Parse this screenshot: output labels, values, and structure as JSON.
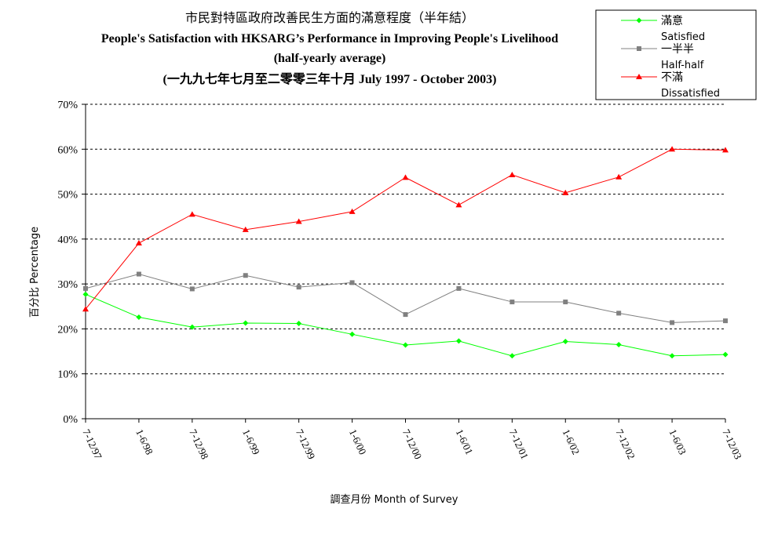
{
  "chart_data": {
    "type": "line",
    "title_lines": [
      "市民對特區政府改善民生方面的滿意程度（半年結）",
      "People's Satisfaction with HKSARG’s Performance in Improving People's Livelihood",
      "(half-yearly average)",
      "(一九九七年七月至二零零三年十月 July 1997 - October 2003)"
    ],
    "xlabel": "調查月份 Month of Survey",
    "ylabel": "百分比 Percentage",
    "categories": [
      "7-12/97",
      "1-6/98",
      "7-12/98",
      "1-6/99",
      "7-12/99",
      "1-6/00",
      "7-12/00",
      "1-6/01",
      "7-12/01",
      "1-6/02",
      "7-12/02",
      "1-6/03",
      "7-12/03"
    ],
    "ylim": [
      0,
      70
    ],
    "yticks": [
      0,
      10,
      20,
      30,
      40,
      50,
      60,
      70
    ],
    "ytick_labels": [
      "0%",
      "10%",
      "20%",
      "30%",
      "40%",
      "50%",
      "60%",
      "70%"
    ],
    "grid": true,
    "legend_position": "top-right",
    "series": [
      {
        "name": "滿意",
        "name_en": "Satisfied",
        "color": "#00ff00",
        "marker": "diamond",
        "values": [
          27.7,
          22.6,
          20.4,
          21.3,
          21.2,
          18.8,
          16.4,
          17.3,
          14.0,
          17.2,
          16.5,
          14.0,
          14.3
        ]
      },
      {
        "name": "一半半",
        "name_en": "Half-half",
        "color": "#808080",
        "marker": "square",
        "values": [
          29.0,
          32.2,
          28.9,
          31.9,
          29.3,
          30.3,
          23.2,
          29.0,
          26.0,
          26.0,
          23.5,
          21.4,
          21.8
        ]
      },
      {
        "name": "不滿",
        "name_en": "Dissatisfied",
        "color": "#ff0000",
        "marker": "triangle",
        "values": [
          24.4,
          39.1,
          45.5,
          42.1,
          43.9,
          46.1,
          53.7,
          47.6,
          54.3,
          50.3,
          53.8,
          60.0,
          59.8
        ]
      }
    ]
  }
}
